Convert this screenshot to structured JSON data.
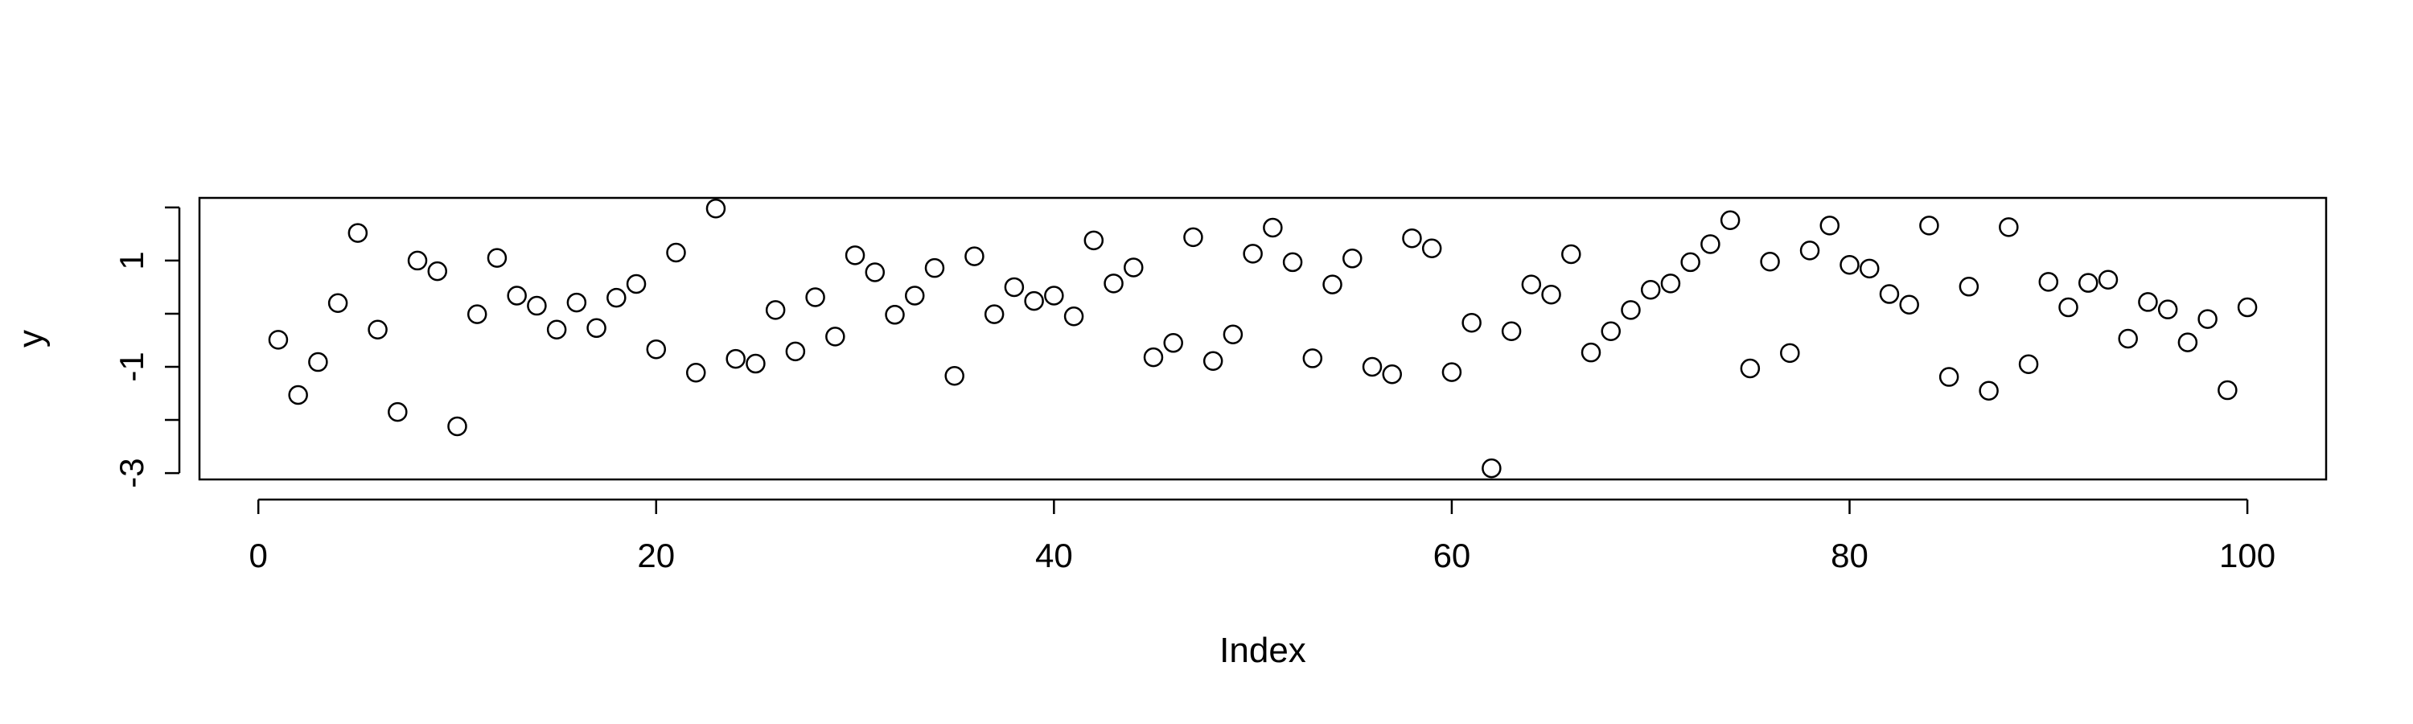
{
  "chart_data": {
    "type": "scatter",
    "title": "",
    "xlabel": "Index",
    "ylabel": "y",
    "xlim": [
      -2.96,
      103.96
    ],
    "ylim": [
      -3.12,
      2.18
    ],
    "x_ticks": [
      0,
      20,
      40,
      60,
      80,
      100
    ],
    "x_tick_labels": [
      "0",
      "20",
      "40",
      "60",
      "80",
      "100"
    ],
    "y_ticks": [
      -3,
      -2,
      -1,
      0,
      1,
      2
    ],
    "y_tick_labels": [
      "-3",
      "",
      "-1",
      "",
      "1",
      ""
    ],
    "grid": false,
    "legend": "none",
    "marker": "open-circle",
    "x": [
      1,
      2,
      3,
      4,
      5,
      6,
      7,
      8,
      9,
      10,
      11,
      12,
      13,
      14,
      15,
      16,
      17,
      18,
      19,
      20,
      21,
      22,
      23,
      24,
      25,
      26,
      27,
      28,
      29,
      30,
      31,
      32,
      33,
      34,
      35,
      36,
      37,
      38,
      39,
      40,
      41,
      42,
      43,
      44,
      45,
      46,
      47,
      48,
      49,
      50,
      51,
      52,
      53,
      54,
      55,
      56,
      57,
      58,
      59,
      60,
      61,
      62,
      63,
      64,
      65,
      66,
      67,
      68,
      69,
      70,
      71,
      72,
      73,
      74,
      75,
      76,
      77,
      78,
      79,
      80,
      81,
      82,
      83,
      84,
      85,
      86,
      87,
      88,
      89,
      90,
      91,
      92,
      93,
      94,
      95,
      96,
      97,
      98,
      99,
      100
    ],
    "y": [
      -0.49,
      -1.53,
      -0.91,
      0.2,
      1.52,
      -0.3,
      -1.85,
      1.0,
      0.8,
      -2.12,
      -0.01,
      1.05,
      0.34,
      0.15,
      -0.3,
      0.21,
      -0.27,
      0.3,
      0.56,
      -0.67,
      1.15,
      -1.11,
      1.98,
      -0.85,
      -0.94,
      0.07,
      -0.71,
      0.31,
      -0.43,
      1.1,
      0.78,
      -0.02,
      0.34,
      0.86,
      -1.17,
      1.08,
      -0.01,
      0.5,
      0.24,
      0.34,
      -0.05,
      1.38,
      0.57,
      0.87,
      -0.82,
      -0.55,
      1.44,
      -0.89,
      -0.39,
      1.13,
      1.62,
      0.97,
      -0.84,
      0.55,
      1.04,
      -1.0,
      -1.14,
      1.42,
      1.23,
      -1.1,
      -0.17,
      -2.91,
      -0.33,
      0.55,
      0.36,
      1.12,
      -0.73,
      -0.33,
      0.07,
      0.45,
      0.57,
      0.97,
      1.31,
      1.76,
      -1.03,
      0.98,
      -0.74,
      1.19,
      1.66,
      0.92,
      0.85,
      0.37,
      0.17,
      1.66,
      -1.19,
      0.51,
      -1.45,
      1.63,
      -0.95,
      0.6,
      0.12,
      0.58,
      0.64,
      -0.47,
      0.22,
      0.08,
      -0.54,
      -0.1,
      -1.44,
      0.12
    ]
  }
}
